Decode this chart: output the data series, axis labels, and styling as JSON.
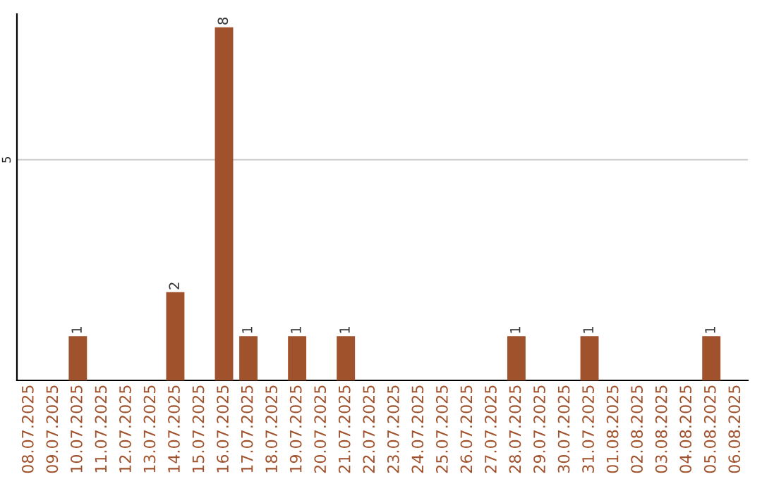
{
  "chart_data": {
    "type": "bar",
    "categories": [
      "08.07.2025",
      "09.07.2025",
      "10.07.2025",
      "11.07.2025",
      "12.07.2025",
      "13.07.2025",
      "14.07.2025",
      "15.07.2025",
      "16.07.2025",
      "17.07.2025",
      "18.07.2025",
      "19.07.2025",
      "20.07.2025",
      "21.07.2025",
      "22.07.2025",
      "23.07.2025",
      "24.07.2025",
      "25.07.2025",
      "26.07.2025",
      "27.07.2025",
      "28.07.2025",
      "29.07.2025",
      "30.07.2025",
      "31.07.2025",
      "01.08.2025",
      "02.08.2025",
      "03.08.2025",
      "04.08.2025",
      "05.08.2025",
      "06.08.2025"
    ],
    "values": [
      0,
      0,
      1,
      0,
      0,
      0,
      2,
      0,
      8,
      1,
      0,
      1,
      0,
      1,
      0,
      0,
      0,
      0,
      0,
      0,
      1,
      0,
      0,
      1,
      0,
      0,
      0,
      0,
      1,
      0
    ],
    "value_labels": [
      null,
      null,
      "1",
      null,
      null,
      null,
      "2",
      null,
      "8",
      "1",
      null,
      "1",
      null,
      "1",
      null,
      null,
      null,
      null,
      null,
      null,
      "1",
      null,
      null,
      "1",
      null,
      null,
      null,
      null,
      "1",
      null
    ],
    "color": "#a0522d",
    "ylim": [
      0,
      8.3
    ],
    "yticks": [
      5
    ],
    "grid": "y",
    "legend": false
  }
}
